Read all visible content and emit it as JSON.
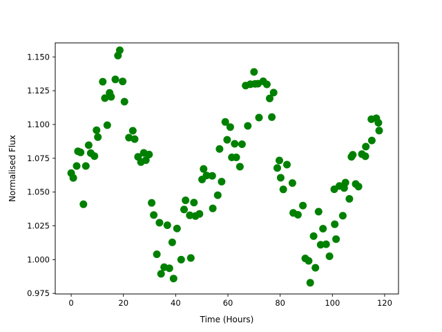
{
  "page": {
    "background": "#ffffff"
  },
  "chart_data": {
    "type": "scatter",
    "title": "",
    "xlabel": "Time (Hours)",
    "ylabel": "Normalised Flux",
    "grid": false,
    "legend": null,
    "marker": {
      "shape": "circle",
      "color": "#008000",
      "radius_px": 5.5
    },
    "x_ticks": [
      0,
      20,
      40,
      60,
      80,
      100,
      120
    ],
    "y_ticks": [
      0.975,
      1.0,
      1.025,
      1.05,
      1.075,
      1.1,
      1.125,
      1.15
    ],
    "xlim": [
      -6.1,
      125.3
    ],
    "ylim": [
      0.9746,
      1.1604
    ],
    "points": [
      [
        0.0,
        1.064
      ],
      [
        0.8,
        1.0605
      ],
      [
        2.1,
        1.0693
      ],
      [
        2.6,
        1.0802
      ],
      [
        3.6,
        1.0794
      ],
      [
        4.7,
        1.041
      ],
      [
        5.6,
        1.0693
      ],
      [
        6.7,
        1.0847
      ],
      [
        7.5,
        1.0788
      ],
      [
        8.9,
        1.0766
      ],
      [
        9.7,
        1.0958
      ],
      [
        10.2,
        1.0907
      ],
      [
        12.1,
        1.1317
      ],
      [
        12.9,
        1.1195
      ],
      [
        13.8,
        1.0995
      ],
      [
        14.7,
        1.1234
      ],
      [
        15.3,
        1.1205
      ],
      [
        16.9,
        1.1334
      ],
      [
        17.9,
        1.151
      ],
      [
        18.6,
        1.155
      ],
      [
        19.7,
        1.1319
      ],
      [
        20.4,
        1.1169
      ],
      [
        22.1,
        1.0903
      ],
      [
        23.6,
        1.0954
      ],
      [
        24.3,
        1.0892
      ],
      [
        25.6,
        1.0761
      ],
      [
        26.7,
        1.0722
      ],
      [
        27.8,
        1.079
      ],
      [
        28.6,
        1.0736
      ],
      [
        29.8,
        1.0778
      ],
      [
        30.8,
        1.042
      ],
      [
        31.6,
        1.033
      ],
      [
        32.8,
        1.004
      ],
      [
        33.8,
        1.0273
      ],
      [
        34.4,
        0.9895
      ],
      [
        35.6,
        0.9944
      ],
      [
        36.8,
        1.0255
      ],
      [
        37.6,
        0.9936
      ],
      [
        38.7,
        1.0128
      ],
      [
        39.2,
        0.986
      ],
      [
        40.5,
        1.023
      ],
      [
        42.1,
        1.0
      ],
      [
        43.2,
        1.0371
      ],
      [
        43.8,
        1.0439
      ],
      [
        45.4,
        1.0328
      ],
      [
        45.8,
        1.0012
      ],
      [
        47.0,
        1.0422
      ],
      [
        47.6,
        1.0323
      ],
      [
        49.1,
        1.0338
      ],
      [
        50.1,
        1.0593
      ],
      [
        50.7,
        1.0671
      ],
      [
        51.8,
        1.0623
      ],
      [
        54.0,
        1.062
      ],
      [
        54.2,
        1.0379
      ],
      [
        56.1,
        1.0477
      ],
      [
        56.8,
        1.0819
      ],
      [
        57.6,
        1.0577
      ],
      [
        59.0,
        1.1019
      ],
      [
        59.7,
        1.0887
      ],
      [
        60.9,
        1.0981
      ],
      [
        61.5,
        1.0757
      ],
      [
        62.6,
        1.0857
      ],
      [
        63.2,
        1.0757
      ],
      [
        64.6,
        1.0688
      ],
      [
        65.4,
        1.0854
      ],
      [
        66.8,
        1.1288
      ],
      [
        67.6,
        1.099
      ],
      [
        68.6,
        1.1298
      ],
      [
        70.0,
        1.1389
      ],
      [
        70.4,
        1.1301
      ],
      [
        71.5,
        1.1302
      ],
      [
        71.9,
        1.1051
      ],
      [
        73.5,
        1.132
      ],
      [
        74.9,
        1.1297
      ],
      [
        76.0,
        1.1193
      ],
      [
        76.8,
        1.1055
      ],
      [
        77.5,
        1.1236
      ],
      [
        78.9,
        1.0678
      ],
      [
        79.7,
        1.0734
      ],
      [
        80.2,
        1.0606
      ],
      [
        81.2,
        1.052
      ],
      [
        82.6,
        1.0703
      ],
      [
        84.7,
        1.0567
      ],
      [
        85.0,
        1.0346
      ],
      [
        86.8,
        1.0332
      ],
      [
        88.7,
        1.04
      ],
      [
        89.6,
        1.0009
      ],
      [
        90.9,
        0.9991
      ],
      [
        91.5,
        0.9829
      ],
      [
        92.8,
        1.0174
      ],
      [
        93.5,
        0.994
      ],
      [
        94.7,
        1.0355
      ],
      [
        95.5,
        1.011
      ],
      [
        96.4,
        1.0229
      ],
      [
        97.6,
        1.0114
      ],
      [
        98.9,
        1.0025
      ],
      [
        100.7,
        1.0521
      ],
      [
        100.9,
        1.0262
      ],
      [
        101.4,
        1.0152
      ],
      [
        102.7,
        1.0545
      ],
      [
        104.0,
        1.0325
      ],
      [
        104.5,
        1.053
      ],
      [
        105.0,
        1.057
      ],
      [
        106.5,
        1.045
      ],
      [
        107.3,
        1.0761
      ],
      [
        107.8,
        1.0776
      ],
      [
        108.9,
        1.056
      ],
      [
        110.0,
        1.0541
      ],
      [
        111.3,
        1.0781
      ],
      [
        112.6,
        1.0765
      ],
      [
        112.8,
        1.0836
      ],
      [
        114.9,
        1.1039
      ],
      [
        115.1,
        1.0882
      ],
      [
        116.8,
        1.1046
      ],
      [
        117.6,
        1.1013
      ],
      [
        117.9,
        1.0955
      ]
    ]
  }
}
